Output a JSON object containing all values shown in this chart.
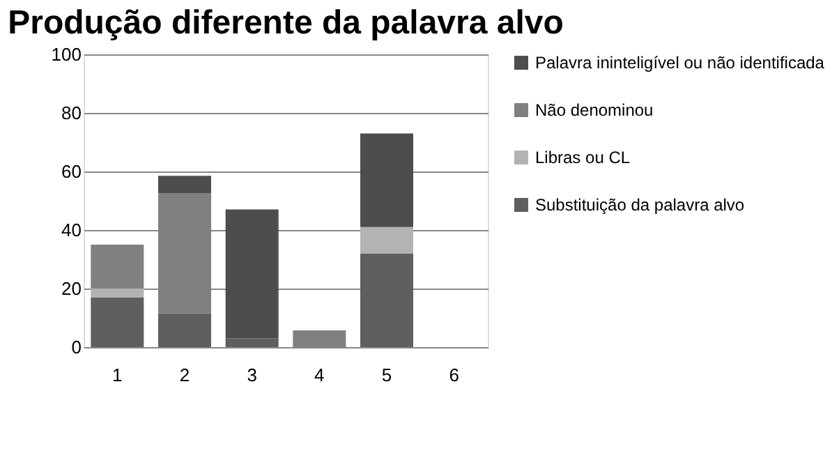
{
  "chart_data": {
    "type": "bar",
    "title": "Produção diferente da palavra alvo",
    "categories": [
      "1",
      "2",
      "3",
      "4",
      "5",
      "6"
    ],
    "stacked": true,
    "series": [
      {
        "name": "Substituição da palavra alvo",
        "color": "#5f5f5f",
        "values": [
          17,
          11.5,
          3,
          0,
          32,
          0
        ]
      },
      {
        "name": "Libras ou CL",
        "color": "#b3b3b3",
        "values": [
          3,
          0,
          0,
          0,
          9,
          0
        ]
      },
      {
        "name": "Não denominou",
        "color": "#808080",
        "values": [
          15,
          41,
          0,
          5.7,
          0,
          0
        ]
      },
      {
        "name": "Palavra ininteligível ou não  identificada",
        "color": "#4d4d4d",
        "values": [
          0,
          6,
          44,
          0,
          32,
          0
        ]
      }
    ],
    "ylim": [
      0,
      100
    ],
    "yticks": [
      0,
      20,
      40,
      60,
      80,
      100
    ],
    "grid": "y",
    "legend": "right"
  }
}
